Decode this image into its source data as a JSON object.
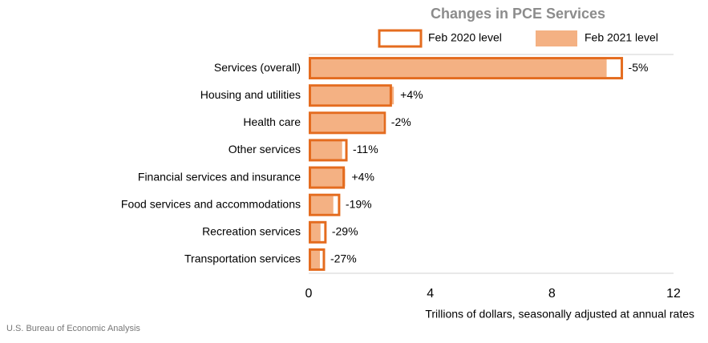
{
  "chart_data": {
    "type": "bar",
    "orientation": "horizontal",
    "title": "Changes in PCE Services",
    "categories": [
      "Services (overall)",
      "Housing and utilities",
      "Health care",
      "Other services",
      "Financial services and insurance",
      "Food services and accommodations",
      "Recreation services",
      "Transportation services"
    ],
    "series": [
      {
        "name": "Feb 2020 level",
        "color": "#e46c1f",
        "style": "outline",
        "values": [
          10.3,
          2.7,
          2.5,
          1.24,
          1.15,
          1.0,
          0.55,
          0.5
        ]
      },
      {
        "name": "Feb 2021 level",
        "color": "#f4b183",
        "style": "filled",
        "values": [
          9.8,
          2.8,
          2.45,
          1.1,
          1.2,
          0.81,
          0.39,
          0.37
        ]
      }
    ],
    "annotations": [
      "-5%",
      "+4%",
      "-2%",
      "-11%",
      "+4%",
      "-19%",
      "-29%",
      "-27%"
    ],
    "xlim": [
      0,
      12
    ],
    "xticks": [
      0,
      4,
      8,
      12
    ],
    "xlabel": "Trillions of dollars, seasonally adjusted at annual rates",
    "source": "U.S. Bureau of Economic Analysis",
    "grid": false
  }
}
